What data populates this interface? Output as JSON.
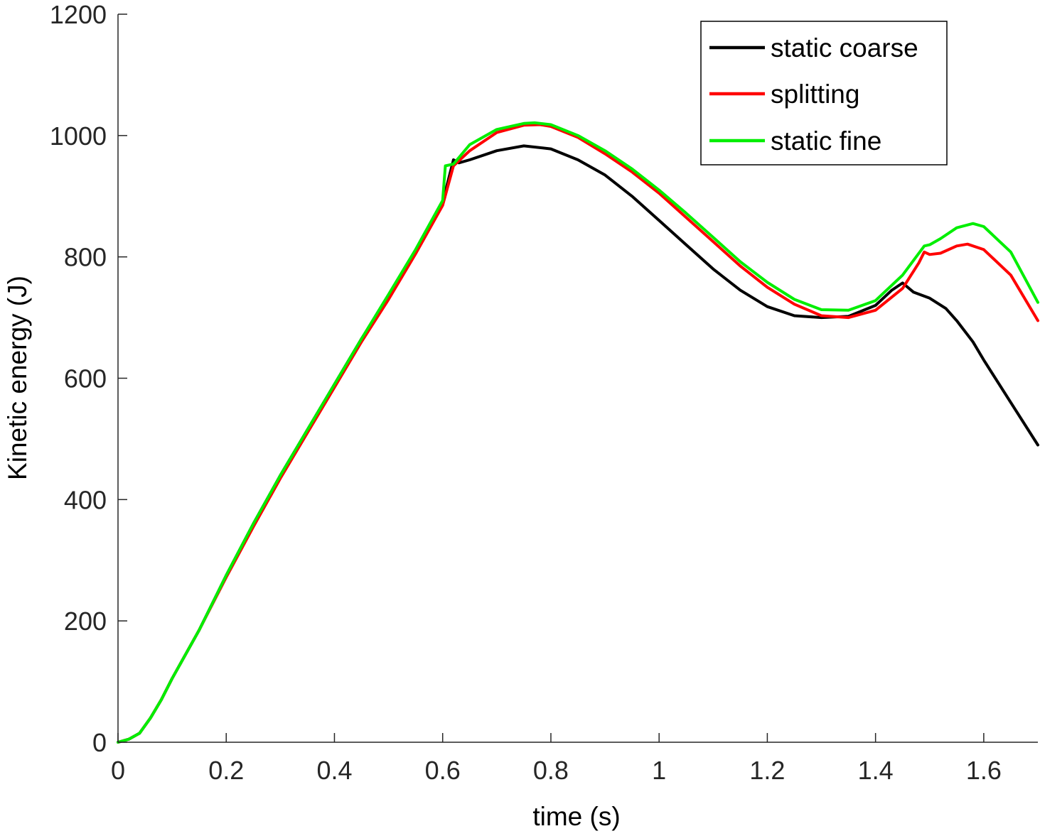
{
  "chart_data": {
    "type": "line",
    "title": "",
    "xlabel": "time (s)",
    "ylabel": "Kinetic energy (J)",
    "xlim": [
      0,
      1.7
    ],
    "ylim": [
      0,
      1200
    ],
    "xticks": [
      0,
      0.2,
      0.4,
      0.6,
      0.8,
      1,
      1.2,
      1.4,
      1.6
    ],
    "xtick_labels": [
      "0",
      "0.2",
      "0.4",
      "0.6",
      "0.8",
      "1",
      "1.2",
      "1.4",
      "1.6"
    ],
    "yticks": [
      0,
      200,
      400,
      600,
      800,
      1000,
      1200
    ],
    "ytick_labels": [
      "0",
      "200",
      "400",
      "600",
      "800",
      "1000",
      "1200"
    ],
    "grid": false,
    "legend_position": "top-right",
    "series": [
      {
        "name": "static coarse",
        "color": "#000000",
        "x": [
          0,
          0.02,
          0.04,
          0.06,
          0.08,
          0.1,
          0.15,
          0.2,
          0.25,
          0.3,
          0.35,
          0.4,
          0.45,
          0.5,
          0.55,
          0.6,
          0.62,
          0.63,
          0.65,
          0.7,
          0.75,
          0.8,
          0.85,
          0.9,
          0.95,
          1.0,
          1.05,
          1.1,
          1.15,
          1.2,
          1.25,
          1.3,
          1.35,
          1.4,
          1.43,
          1.45,
          1.47,
          1.5,
          1.53,
          1.55,
          1.58,
          1.6,
          1.65,
          1.7
        ],
        "y": [
          0,
          5,
          15,
          40,
          70,
          105,
          185,
          275,
          360,
          440,
          515,
          590,
          665,
          735,
          810,
          890,
          960,
          955,
          960,
          975,
          983,
          978,
          960,
          935,
          900,
          860,
          820,
          780,
          745,
          718,
          703,
          700,
          702,
          720,
          745,
          757,
          742,
          732,
          715,
          695,
          660,
          630,
          560,
          490
        ]
      },
      {
        "name": "splitting",
        "color": "#ff0000",
        "x": [
          0,
          0.02,
          0.04,
          0.06,
          0.08,
          0.1,
          0.15,
          0.2,
          0.25,
          0.3,
          0.35,
          0.4,
          0.45,
          0.5,
          0.55,
          0.6,
          0.62,
          0.65,
          0.7,
          0.75,
          0.78,
          0.8,
          0.85,
          0.9,
          0.95,
          1.0,
          1.05,
          1.1,
          1.15,
          1.2,
          1.25,
          1.3,
          1.35,
          1.4,
          1.45,
          1.48,
          1.49,
          1.5,
          1.52,
          1.55,
          1.57,
          1.6,
          1.65,
          1.7
        ],
        "y": [
          0,
          5,
          15,
          40,
          70,
          105,
          185,
          272,
          355,
          435,
          510,
          585,
          660,
          730,
          805,
          885,
          950,
          975,
          1005,
          1017,
          1018,
          1015,
          997,
          970,
          940,
          905,
          865,
          825,
          785,
          750,
          722,
          703,
          700,
          712,
          748,
          790,
          808,
          804,
          806,
          818,
          821,
          812,
          770,
          695
        ]
      },
      {
        "name": "static fine",
        "color": "#00ee00",
        "x": [
          0,
          0.02,
          0.04,
          0.06,
          0.08,
          0.1,
          0.15,
          0.2,
          0.25,
          0.3,
          0.35,
          0.4,
          0.45,
          0.5,
          0.55,
          0.6,
          0.605,
          0.62,
          0.65,
          0.7,
          0.75,
          0.77,
          0.8,
          0.85,
          0.9,
          0.95,
          1.0,
          1.05,
          1.1,
          1.15,
          1.2,
          1.25,
          1.3,
          1.35,
          1.4,
          1.45,
          1.49,
          1.5,
          1.52,
          1.55,
          1.58,
          1.6,
          1.65,
          1.7
        ],
        "y": [
          0,
          5,
          15,
          40,
          70,
          105,
          185,
          275,
          360,
          440,
          515,
          590,
          665,
          738,
          812,
          893,
          950,
          953,
          985,
          1010,
          1020,
          1021,
          1018,
          1000,
          975,
          945,
          910,
          872,
          832,
          792,
          758,
          730,
          713,
          712,
          728,
          770,
          818,
          820,
          830,
          848,
          855,
          850,
          808,
          725
        ]
      }
    ]
  }
}
